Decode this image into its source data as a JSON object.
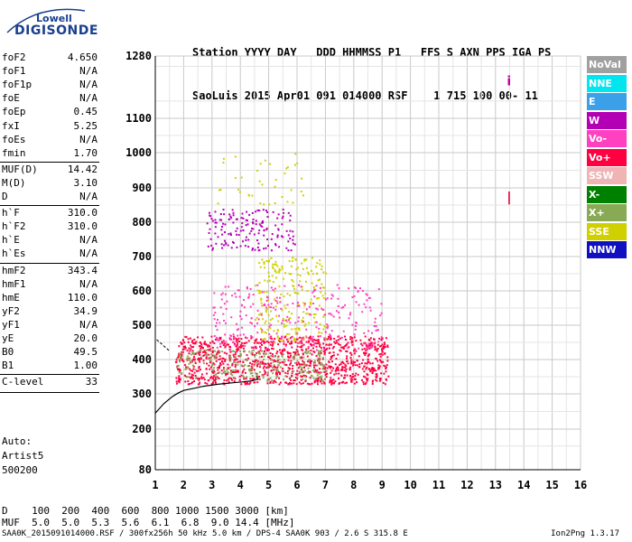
{
  "logo": {
    "line1": "Lowell",
    "line2": "DIGISONDE"
  },
  "header": {
    "row1": "Station YYYY DAY   DDD HHMMSS P1   FFS S AXN PPS IGA PS",
    "row2": "SaoLuis 2015 Apr01 091 014000 RSF    1 715 100 00- 11"
  },
  "params": [
    {
      "name": "foF2",
      "value": "4.650"
    },
    {
      "name": "foF1",
      "value": "N/A"
    },
    {
      "name": "foF1p",
      "value": "N/A"
    },
    {
      "name": "foE",
      "value": "N/A"
    },
    {
      "name": "foEp",
      "value": "0.45"
    },
    {
      "name": "fxI",
      "value": "5.25"
    },
    {
      "name": "foEs",
      "value": "N/A"
    },
    {
      "name": "fmin",
      "value": "1.70"
    },
    {
      "name": "MUF(D)",
      "value": "14.42"
    },
    {
      "name": "M(D)",
      "value": "3.10"
    },
    {
      "name": "D",
      "value": "N/A"
    },
    {
      "name": "h`F",
      "value": "310.0"
    },
    {
      "name": "h`F2",
      "value": "310.0"
    },
    {
      "name": "h`E",
      "value": "N/A"
    },
    {
      "name": "h`Es",
      "value": "N/A"
    },
    {
      "name": "hmF2",
      "value": "343.4"
    },
    {
      "name": "hmF1",
      "value": "N/A"
    },
    {
      "name": "hmE",
      "value": "110.0"
    },
    {
      "name": "yF2",
      "value": "34.9"
    },
    {
      "name": "yF1",
      "value": "N/A"
    },
    {
      "name": "yE",
      "value": "20.0"
    },
    {
      "name": "B0",
      "value": "49.5"
    },
    {
      "name": "B1",
      "value": "1.00"
    },
    {
      "name": "C-level",
      "value": "33"
    }
  ],
  "misc": {
    "auto": "Auto:",
    "artist": "Artist5",
    "version": "500200"
  },
  "legend": [
    {
      "label": "NoVal",
      "color": "#a0a0a0"
    },
    {
      "label": "NNE",
      "color": "#00e5ee"
    },
    {
      "label": "E",
      "color": "#3ca0e8"
    },
    {
      "label": "W",
      "color": "#b400b4"
    },
    {
      "label": "Vo-",
      "color": "#ff40c0"
    },
    {
      "label": "Vo+",
      "color": "#ff0040"
    },
    {
      "label": "SSW",
      "color": "#f0b4b4"
    },
    {
      "label": "X-",
      "color": "#008000"
    },
    {
      "label": "X+",
      "color": "#88aa55"
    },
    {
      "label": "SSE",
      "color": "#d0d000"
    },
    {
      "label": "NNW",
      "color": "#1010c0"
    }
  ],
  "footer": {
    "d_row": "D    100  200  400  600  800 1000 1500 3000 [km]",
    "muf_row": "MUF  5.0  5.0  5.3  5.6  6.1  6.8  9.0 14.4 [MHz]",
    "file": "SAA0K_2015091014000.RSF / 300fx256h 50 kHz 5.0 km / DPS-4 SAA0K 903 / 2.6 S 315.8 E",
    "app": "Ion2Png 1.3.17"
  },
  "chart_data": {
    "type": "scatter",
    "xlim": [
      1,
      16
    ],
    "ylim": [
      80,
      1280
    ],
    "x_ticks": [
      1,
      2,
      3,
      4,
      5,
      6,
      7,
      8,
      9,
      10,
      11,
      12,
      13,
      14,
      15,
      16
    ],
    "y_ticks": [
      80,
      200,
      300,
      400,
      500,
      600,
      700,
      800,
      900,
      1000,
      1100,
      1280
    ],
    "grid": true,
    "trace_curve": {
      "x": [
        1.0,
        1.3,
        1.6,
        1.8,
        2.0,
        2.3,
        2.7,
        3.2,
        3.7,
        4.1,
        4.4,
        4.6,
        4.6
      ],
      "y": [
        245,
        272,
        292,
        302,
        310,
        315,
        322,
        328,
        332,
        335,
        338,
        343,
        352
      ]
    },
    "dashed_trace": {
      "x": [
        1.05,
        1.5
      ],
      "y": [
        458,
        425
      ]
    },
    "echo_regions": [
      {
        "color": "#ff0040",
        "x": [
          1.7,
          9.2
        ],
        "y": [
          330,
          470
        ],
        "density": 0.55
      },
      {
        "color": "#88aa55",
        "x": [
          1.7,
          7.0
        ],
        "y": [
          340,
          430
        ],
        "density": 0.25
      },
      {
        "color": "#b400b4",
        "x": [
          2.8,
          5.9
        ],
        "y": [
          720,
          840
        ],
        "density": 0.22
      },
      {
        "color": "#d0d000",
        "x": [
          4.5,
          7.0
        ],
        "y": [
          450,
          700
        ],
        "density": 0.18
      },
      {
        "color": "#d0d000",
        "x": [
          3.0,
          6.2
        ],
        "y": [
          850,
          1000
        ],
        "density": 0.04
      },
      {
        "color": "#ff40c0",
        "x": [
          3.0,
          9.0
        ],
        "y": [
          430,
          620
        ],
        "density": 0.12
      }
    ],
    "markers": [
      {
        "text": "i",
        "x": 13.4,
        "y": 1195,
        "color": "#c000a0"
      },
      {
        "text": "|",
        "x": 13.4,
        "y": 860,
        "color": "#e00030"
      }
    ]
  }
}
